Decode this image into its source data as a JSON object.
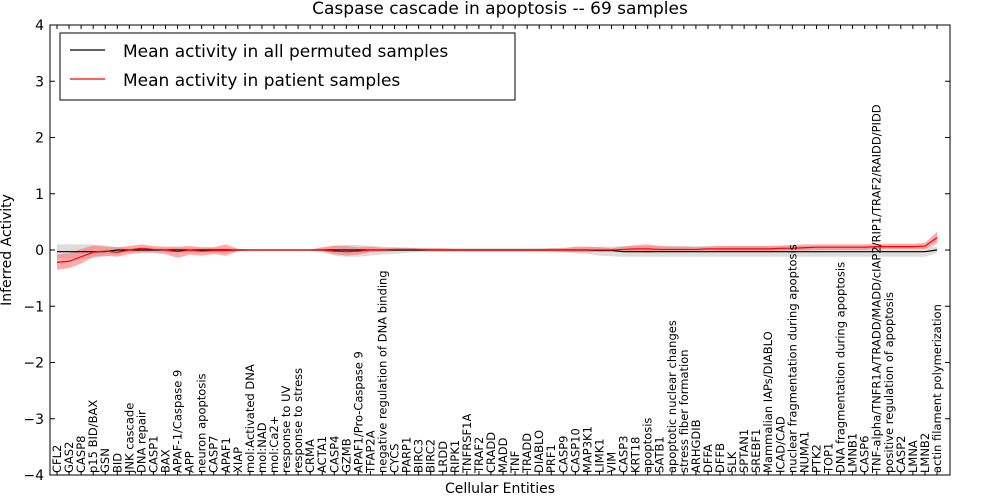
{
  "chart_data": {
    "type": "line",
    "title": "Caspase cascade in apoptosis -- 69 samples",
    "xlabel": "Cellular Entities",
    "ylabel": "Inferred Activity",
    "ylim": [
      -4,
      4
    ],
    "yticks": [
      -4,
      -3,
      -2,
      -1,
      0,
      1,
      2,
      3,
      4
    ],
    "ytick_labels": [
      "−4",
      "−3",
      "−2",
      "−1",
      "0",
      "1",
      "2",
      "3",
      "4"
    ],
    "legend_position": "top-left",
    "colors": {
      "permuted": "#000000",
      "patient": "#ff0000",
      "permuted_band": "#bbbbbb",
      "patient_band": "#ff6666"
    },
    "categories": [
      "CFL2",
      "GAS2",
      "CASP8",
      "p15 BID/BAX",
      "GSN",
      "BID",
      "JNK cascade",
      "DNA repair",
      "CASP1",
      "BAX",
      "APAF-1/Caspase 9",
      "APP",
      "neuron apoptosis",
      "CASP7",
      "APAF1",
      "XIAP",
      "mol:Activated DNA",
      "mol:NAD",
      "mol:Ca2+",
      "response to UV",
      "response to stress",
      "CRMA",
      "ACTA1",
      "CASP4",
      "GZMB",
      "APAF1/Pro-Caspase 9",
      "TFAP2A",
      "negative regulation of DNA binding",
      "CYCS",
      "PARP1",
      "BIRC3",
      "BIRC2",
      "LRDD",
      "RIPK1",
      "TNFRSF1A",
      "TRAF2",
      "CRADD",
      "MADD",
      "TNF",
      "TRADD",
      "DIABLO",
      "PRF1",
      "CASP9",
      "CASP10",
      "MAP3K1",
      "LIMK1",
      "VIM",
      "CASP3",
      "KRT18",
      "apoptosis",
      "SATB1",
      "apoptotic nuclear changes",
      "stress fiber formation",
      "ARHGDIB",
      "DFFA",
      "DFFB",
      "SLK",
      "SPTAN1",
      "SREBF1",
      "Mammalian IAPs/DIABLO",
      "ICAD/CAD",
      "nuclear fragmentation during apoptosis",
      "NUMA1",
      "PTK2",
      "TOP1",
      "DNA fragmentation during apoptosis",
      "LMNB1",
      "CASP6",
      "TNF-alpha/TNFR1A/TRADD/MADD/cIAP2/RIP1/TRAF2/RAIDD/PIDD",
      "positive regulation of apoptosis",
      "CASP2",
      "LMNA",
      "LMNB2",
      "actin filament polymerization"
    ],
    "series": [
      {
        "name": "Mean activity in all permuted samples",
        "values": [
          -0.03,
          -0.03,
          -0.03,
          -0.03,
          -0.03,
          0.0,
          0.0,
          0.0,
          0.0,
          0.0,
          0.0,
          0.0,
          0.0,
          0.0,
          0.0,
          0.0,
          0.0,
          0.0,
          0.0,
          0.0,
          0.0,
          0.0,
          0.0,
          0.0,
          0.0,
          0.0,
          0.0,
          0.0,
          0.0,
          0.0,
          0.0,
          0.0,
          0.0,
          0.0,
          0.0,
          0.0,
          0.0,
          0.0,
          0.0,
          0.0,
          0.0,
          0.0,
          0.0,
          0.0,
          0.0,
          -0.01,
          -0.01,
          -0.03,
          -0.03,
          -0.03,
          -0.03,
          -0.03,
          -0.03,
          -0.03,
          -0.03,
          -0.03,
          -0.03,
          -0.03,
          -0.03,
          -0.03,
          -0.03,
          -0.03,
          -0.03,
          -0.03,
          -0.03,
          -0.03,
          -0.03,
          -0.03,
          -0.03,
          -0.03,
          -0.03,
          -0.03,
          -0.03,
          0.0
        ],
        "lower": [
          -0.15,
          -0.15,
          -0.15,
          -0.15,
          -0.12,
          -0.06,
          -0.04,
          -0.04,
          -0.04,
          -0.04,
          -0.04,
          -0.04,
          -0.04,
          -0.04,
          -0.04,
          -0.02,
          -0.01,
          -0.01,
          -0.01,
          -0.01,
          -0.01,
          -0.01,
          -0.04,
          -0.1,
          -0.12,
          -0.12,
          -0.1,
          -0.08,
          -0.07,
          -0.05,
          -0.04,
          -0.03,
          -0.03,
          -0.03,
          -0.03,
          -0.03,
          -0.03,
          -0.03,
          -0.03,
          -0.03,
          -0.03,
          -0.04,
          -0.05,
          -0.06,
          -0.07,
          -0.1,
          -0.11,
          -0.12,
          -0.12,
          -0.12,
          -0.12,
          -0.12,
          -0.12,
          -0.12,
          -0.12,
          -0.12,
          -0.12,
          -0.12,
          -0.12,
          -0.12,
          -0.12,
          -0.12,
          -0.12,
          -0.12,
          -0.12,
          -0.12,
          -0.12,
          -0.12,
          -0.12,
          -0.12,
          -0.12,
          -0.12,
          -0.12,
          -0.06
        ],
        "upper": [
          0.1,
          0.1,
          0.1,
          0.1,
          0.08,
          0.05,
          0.04,
          0.04,
          0.04,
          0.04,
          0.04,
          0.04,
          0.04,
          0.04,
          0.04,
          0.02,
          0.01,
          0.01,
          0.01,
          0.01,
          0.01,
          0.01,
          0.03,
          0.07,
          0.09,
          0.09,
          0.07,
          0.06,
          0.05,
          0.04,
          0.03,
          0.03,
          0.03,
          0.03,
          0.03,
          0.03,
          0.03,
          0.03,
          0.03,
          0.03,
          0.03,
          0.03,
          0.04,
          0.05,
          0.05,
          0.06,
          0.06,
          0.07,
          0.07,
          0.07,
          0.07,
          0.07,
          0.07,
          0.07,
          0.07,
          0.07,
          0.07,
          0.07,
          0.07,
          0.07,
          0.07,
          0.07,
          0.07,
          0.07,
          0.07,
          0.07,
          0.07,
          0.07,
          0.07,
          0.07,
          0.07,
          0.07,
          0.07,
          0.05
        ]
      },
      {
        "name": "Mean activity in patient samples",
        "values": [
          -0.22,
          -0.2,
          -0.12,
          -0.04,
          -0.02,
          -0.04,
          0.0,
          0.03,
          0.01,
          0.0,
          -0.03,
          0.0,
          -0.02,
          -0.01,
          -0.01,
          0.0,
          0.0,
          0.0,
          0.0,
          0.0,
          0.0,
          0.0,
          0.0,
          -0.02,
          -0.03,
          -0.02,
          0.0,
          0.0,
          0.01,
          0.01,
          0.01,
          0.0,
          0.0,
          0.0,
          0.0,
          0.0,
          0.0,
          0.0,
          0.0,
          0.0,
          0.0,
          0.0,
          0.0,
          0.0,
          0.0,
          0.0,
          0.0,
          0.01,
          0.02,
          0.02,
          0.01,
          0.01,
          0.01,
          0.01,
          0.02,
          0.02,
          0.02,
          0.02,
          0.02,
          0.02,
          0.03,
          0.03,
          0.04,
          0.05,
          0.05,
          0.05,
          0.05,
          0.05,
          0.06,
          0.06,
          0.06,
          0.06,
          0.07,
          0.22
        ],
        "lower": [
          -0.35,
          -0.32,
          -0.24,
          -0.12,
          -0.1,
          -0.12,
          -0.07,
          -0.05,
          -0.05,
          -0.07,
          -0.14,
          -0.08,
          -0.1,
          -0.07,
          -0.1,
          -0.02,
          -0.01,
          -0.01,
          -0.01,
          -0.01,
          -0.01,
          -0.01,
          -0.02,
          -0.07,
          -0.1,
          -0.08,
          -0.04,
          -0.03,
          -0.02,
          -0.02,
          -0.02,
          -0.02,
          -0.02,
          -0.02,
          -0.02,
          -0.02,
          -0.02,
          -0.02,
          -0.02,
          -0.02,
          -0.02,
          -0.02,
          -0.03,
          -0.04,
          -0.04,
          -0.03,
          -0.02,
          -0.03,
          -0.04,
          -0.05,
          -0.03,
          -0.03,
          -0.03,
          -0.02,
          -0.01,
          -0.02,
          -0.02,
          -0.02,
          -0.02,
          -0.02,
          -0.01,
          -0.01,
          -0.01,
          0.0,
          0.0,
          0.0,
          0.0,
          0.0,
          0.02,
          0.02,
          0.02,
          0.02,
          0.02,
          0.12
        ],
        "upper": [
          -0.08,
          -0.06,
          0.02,
          0.08,
          0.06,
          0.05,
          0.07,
          0.1,
          0.07,
          0.06,
          0.06,
          0.07,
          0.05,
          0.05,
          0.1,
          0.02,
          0.01,
          0.01,
          0.01,
          0.01,
          0.01,
          0.01,
          0.05,
          0.08,
          0.07,
          0.05,
          0.06,
          0.04,
          0.04,
          0.04,
          0.03,
          0.03,
          0.03,
          0.02,
          0.02,
          0.02,
          0.02,
          0.02,
          0.02,
          0.02,
          0.02,
          0.03,
          0.03,
          0.06,
          0.06,
          0.05,
          0.03,
          0.06,
          0.09,
          0.1,
          0.07,
          0.06,
          0.06,
          0.05,
          0.06,
          0.07,
          0.07,
          0.07,
          0.07,
          0.07,
          0.08,
          0.09,
          0.1,
          0.1,
          0.1,
          0.1,
          0.1,
          0.1,
          0.11,
          0.11,
          0.11,
          0.11,
          0.13,
          0.32
        ]
      }
    ]
  }
}
